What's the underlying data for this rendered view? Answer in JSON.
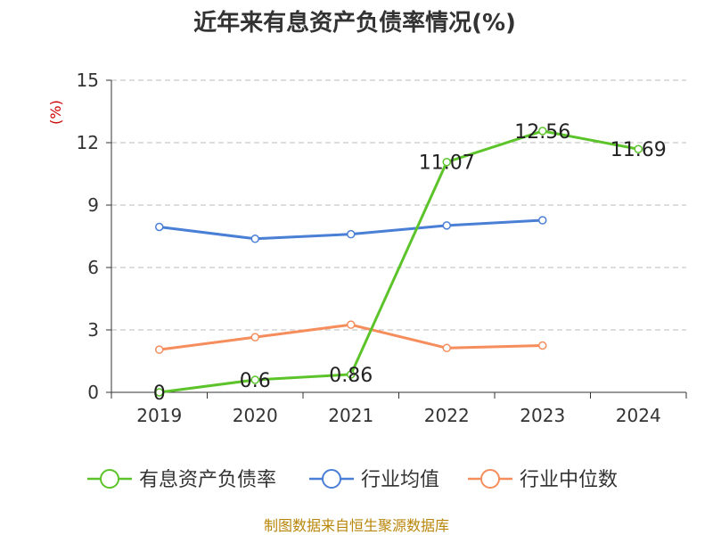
{
  "chart_data": {
    "type": "line",
    "title": "近年来有息资产负债率情况(%)",
    "ylabel_unit": "(%)",
    "categories": [
      "2019",
      "2020",
      "2021",
      "2022",
      "2023",
      "2024"
    ],
    "ylim": [
      0,
      15
    ],
    "yticks": [
      0,
      3,
      6,
      9,
      12,
      15
    ],
    "grid": true,
    "legend_position": "bottom",
    "series": [
      {
        "name": "有息资产负债率",
        "color": "#5cc42a",
        "values": [
          0,
          0.6,
          0.86,
          11.07,
          12.56,
          11.69
        ],
        "labels": [
          "0",
          "0.6",
          "0.86",
          "11.07",
          "12.56",
          "11.69"
        ]
      },
      {
        "name": "行业均值",
        "color": "#4a7fd6",
        "values": [
          7.95,
          7.38,
          7.6,
          8.02,
          8.27,
          null
        ]
      },
      {
        "name": "行业中位数",
        "color": "#f58d5c",
        "values": [
          2.05,
          2.65,
          3.25,
          2.13,
          2.25,
          null
        ]
      }
    ],
    "source": "制图数据来自恒生聚源数据库"
  }
}
